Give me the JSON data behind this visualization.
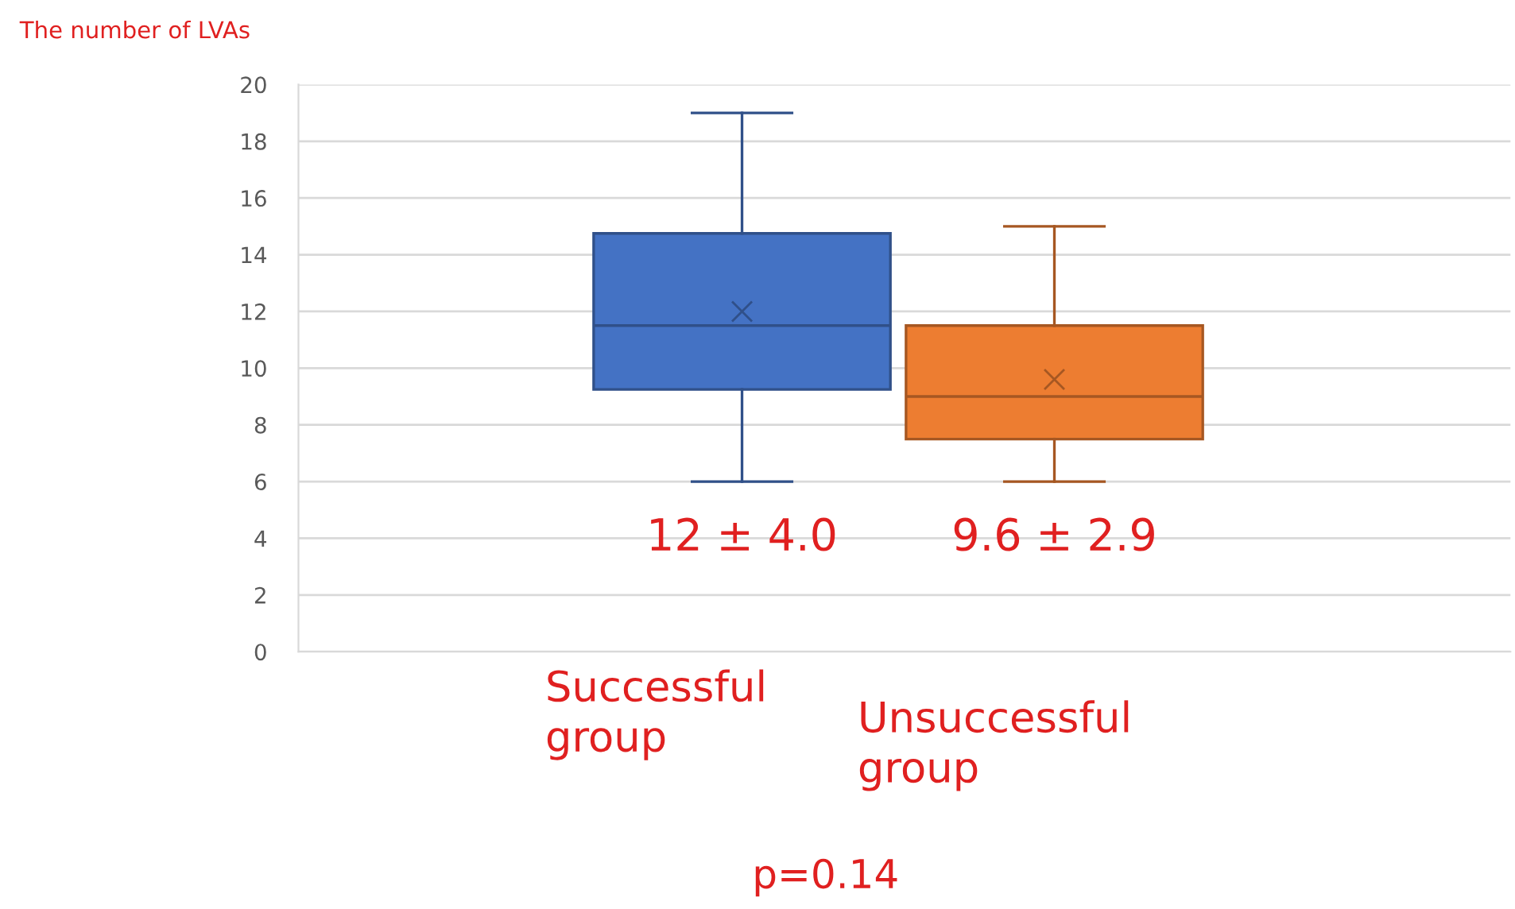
{
  "chart_data": {
    "type": "box",
    "ylabel": "The number of LVAs",
    "categories": [
      "Successful group",
      "Unsuccessful group"
    ],
    "boxes": [
      {
        "low": 6,
        "q1": 9.25,
        "median": 11.5,
        "q3": 14.75,
        "high": 19,
        "mean": 12
      },
      {
        "low": 6,
        "q1": 7.5,
        "median": 9,
        "q3": 11.5,
        "high": 15,
        "mean": 9.6
      }
    ],
    "colors": [
      "#4472c4",
      "#ed7d31"
    ],
    "ylim": [
      0,
      20
    ],
    "yticks": [
      0,
      2,
      4,
      6,
      8,
      10,
      12,
      14,
      16,
      18,
      20
    ],
    "grid": "y",
    "marker": "cross",
    "annotations": [
      "12 ± 4.0",
      "9.6 ± 2.9",
      "p=0.14"
    ]
  }
}
